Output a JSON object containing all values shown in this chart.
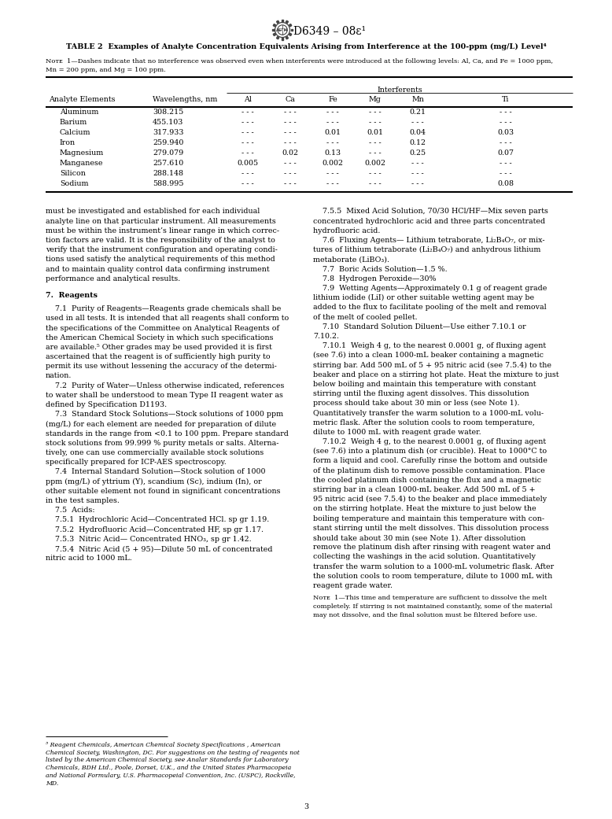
{
  "page_width": 7.78,
  "page_height": 10.41,
  "bg_color": "#ffffff",
  "header_logo_text": "D6349 – 08ε¹",
  "table_title": "TABLE 2  Examples of Analyte Concentration Equivalents Arising from Interference at the 100-ppm (mg/L) Level⁴",
  "note1_label": "Nᴏᴛᴇ  1",
  "note1_dash": "—",
  "note1_body": "Dashes indicate that no interference was observed even when interferents were introduced at the following levels: Al, Ca, and Fe = 1000 ppm,",
  "note1_line2": "Mn = 200 ppm, and Mg = 100 ppm.",
  "col_headers": [
    "Analyte Elements",
    "Wavelengths, nm",
    "Al",
    "Ca",
    "Fe",
    "Mg",
    "Mn",
    "Ti"
  ],
  "interferents_label": "Interferents",
  "rows": [
    [
      "Aluminum",
      "308.215",
      "- - -",
      "- - -",
      "- - -",
      "- - -",
      "0.21",
      "- - -"
    ],
    [
      "Barium",
      "455.103",
      "- - -",
      "- - -",
      "- - -",
      "- - -",
      "- - -",
      "- - -"
    ],
    [
      "Calcium",
      "317.933",
      "- - -",
      "- - -",
      "0.01",
      "0.01",
      "0.04",
      "0.03"
    ],
    [
      "Iron",
      "259.940",
      "- - -",
      "- - -",
      "- - -",
      "- - -",
      "0.12",
      "- - -"
    ],
    [
      "Magnesium",
      "279.079",
      "- - -",
      "0.02",
      "0.13",
      "- - -",
      "0.25",
      "0.07"
    ],
    [
      "Manganese",
      "257.610",
      "0.005",
      "- - -",
      "0.002",
      "0.002",
      "- - -",
      "- - -"
    ],
    [
      "Silicon",
      "288.148",
      "- - -",
      "- - -",
      "- - -",
      "- - -",
      "- - -",
      "- - -"
    ],
    [
      "Sodium",
      "588.995",
      "- - -",
      "- - -",
      "- - -",
      "- - -",
      "- - -",
      "0.08"
    ]
  ],
  "body_left_col1": [
    "must be investigated and established for each individual",
    "analyte line on that particular instrument. All measurements",
    "must be within the instrument’s linear range in which correc-",
    "tion factors are valid. It is the responsibility of the analyst to",
    "verify that the instrument configuration and operating condi-",
    "tions used satisfy the analytical requirements of this method",
    "and to maintain quality control data confirming instrument",
    "performance and analytical results."
  ],
  "section7_header": "7.  Reagents",
  "section7_text": [
    "    7.1  Purity of Reagents—Reagents grade chemicals shall be",
    "used in all tests. It is intended that all reagents shall conform to",
    "the specifications of the Committee on Analytical Reagents of",
    "the American Chemical Society in which such specifications",
    "are available.⁵ Other grades may be used provided it is first",
    "ascertained that the reagent is of sufficiently high purity to",
    "permit its use without lessening the accuracy of the determi-",
    "nation.",
    "    7.2  Purity of Water—Unless otherwise indicated, references",
    "to water shall be understood to mean Type II reagent water as",
    "defined by Specification D1193.",
    "    7.3  Standard Stock Solutions—Stock solutions of 1000 ppm",
    "(mg/L) for each element are needed for preparation of dilute",
    "standards in the range from <0.1 to 100 ppm. Prepare standard",
    "stock solutions from 99.999 % purity metals or salts. Alterna-",
    "tively, one can use commercially available stock solutions",
    "specifically prepared for ICP-AES spectroscopy.",
    "    7.4  Internal Standard Solution—Stock solution of 1000",
    "ppm (mg/L) of yttrium (Y), scandium (Sc), indium (In), or",
    "other suitable element not found in significant concentrations",
    "in the test samples.",
    "    7.5  Acids:",
    "    7.5.1  Hydrochloric Acid—Concentrated HCl. sp gr 1.19.",
    "    7.5.2  Hydrofluoric Acid—Concentrated HF, sp gr 1.17.",
    "    7.5.3  Nitric Acid— Concentrated HNO₃, sp gr 1.42.",
    "    7.5.4  Nitric Acid (5 + 95)—Dilute 50 mL of concentrated",
    "nitric acid to 1000 mL."
  ],
  "body_right_col": [
    "    7.5.5  Mixed Acid Solution, 70/30 HCl/HF—Mix seven parts",
    "concentrated hydrochloric acid and three parts concentrated",
    "hydrofluoric acid.",
    "    7.6  Fluxing Agents— Lithium tetraborate, Li₂B₄O₇, or mix-",
    "tures of lithium tetraborate (Li₂B₄O₇) and anhydrous lithium",
    "metaborate (LiBO₃).",
    "    7.7  Boric Acids Solution—1.5 %.",
    "    7.8  Hydrogen Peroxide—30%",
    "    7.9  Wetting Agents—Approximately 0.1 g of reagent grade",
    "lithium iodide (LiI) or other suitable wetting agent may be",
    "added to the flux to facilitate pooling of the melt and removal",
    "of the melt of cooled pellet.",
    "    7.10  Standard Solution Diluent—Use either 7.10.1 or",
    "7.10.2.",
    "    7.10.1  Weigh 4 g, to the nearest 0.0001 g, of fluxing agent",
    "(see 7.6) into a clean 1000-mL beaker containing a magnetic",
    "stirring bar. Add 500 mL of 5 + 95 nitric acid (see 7.5.4) to the",
    "beaker and place on a stirring hot plate. Heat the mixture to just",
    "below boiling and maintain this temperature with constant",
    "stirring until the fluxing agent dissolves. This dissolution",
    "process should take about 30 min or less (see Note 1).",
    "Quantitatively transfer the warm solution to a 1000-mL volu-",
    "metric flask. After the solution cools to room temperature,",
    "dilute to 1000 mL with reagent grade water.",
    "    7.10.2  Weigh 4 g, to the nearest 0.0001 g, of fluxing agent",
    "(see 7.6) into a platinum dish (or crucible). Heat to 1000°C to",
    "form a liquid and cool. Carefully rinse the bottom and outside",
    "of the platinum dish to remove possible contamination. Place",
    "the cooled platinum dish containing the flux and a magnetic",
    "stirring bar in a clean 1000-mL beaker. Add 500 mL of 5 +",
    "95 nitric acid (see 7.5.4) to the beaker and place immediately",
    "on the stirring hotplate. Heat the mixture to just below the",
    "boiling temperature and maintain this temperature with con-",
    "stant stirring until the melt dissolves. This dissolution process",
    "should take about 30 min (see Note 1). After dissolution",
    "remove the platinum dish after rinsing with reagent water and",
    "collecting the washings in the acid solution. Quantitatively",
    "transfer the warm solution to a 1000-mL volumetric flask. After",
    "the solution cools to room temperature, dilute to 1000 mL with",
    "reagent grade water."
  ],
  "note2_label": "Nᴏᴛᴇ  1",
  "note2_dash": "—",
  "note2_body": "This time and temperature are sufficient to dissolve the melt",
  "note2_lines": [
    "completely. If stirring is not maintained constantly, some of the material",
    "may not dissolve, and the final solution must be filtered before use."
  ],
  "footnote_lines": [
    "⁵ Reagent Chemicals, American Chemical Society Specifications , American",
    "Chemical Society, Washington, DC. For suggestions on the testing of reagents not",
    "listed by the American Chemical Society, see Analar Standards for Laboratory",
    "Chemicals, BDH Ltd., Poole, Dorset, U.K., and the United States Pharmacopeia",
    "and National Formulary, U.S. Pharmacopeial Convention, Inc. (USPC), Rockville,",
    "MD."
  ],
  "page_number": "3",
  "red_color": "#cc0000",
  "black_color": "#000000"
}
